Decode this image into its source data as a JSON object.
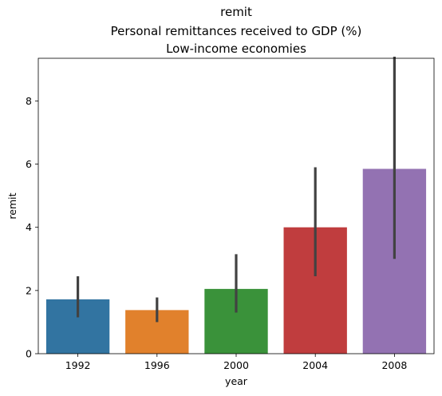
{
  "chart_data": {
    "type": "bar",
    "title": [
      "remit",
      "Personal remittances received to GDP (%)",
      "Low-income economies"
    ],
    "xlabel": "year",
    "ylabel": "remit",
    "categories": [
      "1992",
      "1996",
      "2000",
      "2004",
      "2008"
    ],
    "values": [
      1.72,
      1.38,
      2.05,
      4.0,
      5.85
    ],
    "error_low": [
      1.15,
      1.0,
      1.3,
      2.45,
      3.0
    ],
    "error_high": [
      2.45,
      1.78,
      3.15,
      5.9,
      9.4
    ],
    "ylim": [
      0,
      9.35
    ],
    "yticks": [
      0,
      2,
      4,
      6,
      8
    ],
    "colors": [
      "#3274a1",
      "#e1812c",
      "#3a923a",
      "#c03d3e",
      "#9372b2"
    ],
    "error_color": "#424242",
    "grid": false,
    "legend": "none"
  }
}
